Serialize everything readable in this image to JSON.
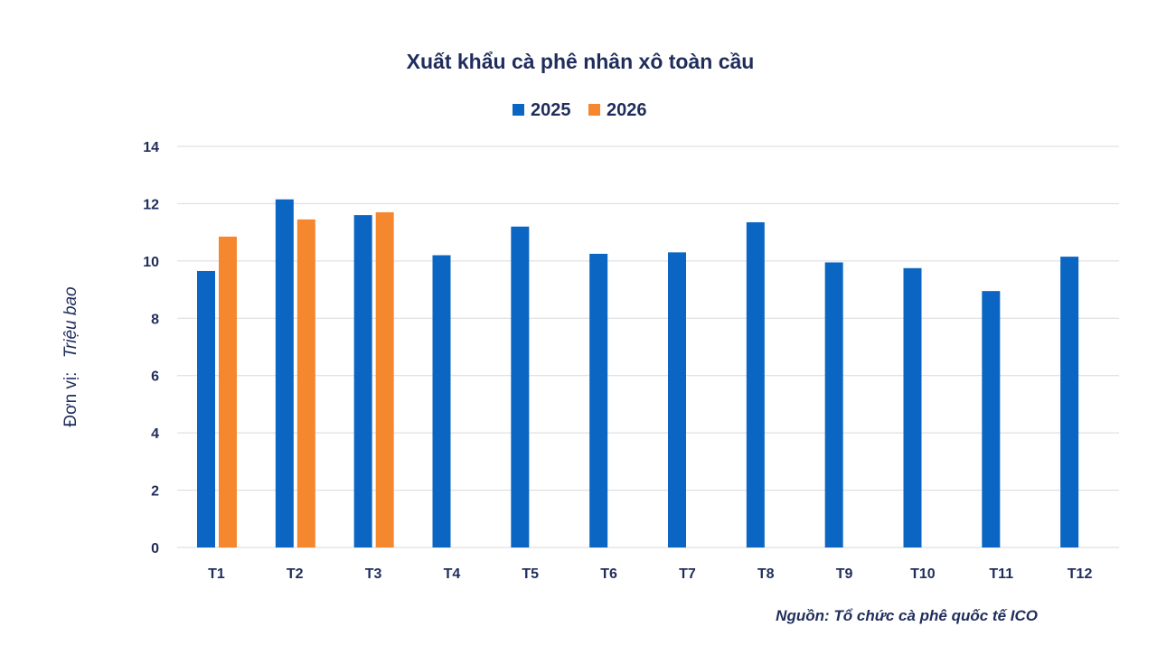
{
  "chart_data": {
    "type": "bar",
    "title": "Xuất khẩu cà phê nhân xô toàn cầu",
    "ylabel_prefix": "Đơn vị:",
    "ylabel_unit": "Triệu bao",
    "xlabel": "",
    "source": "Nguồn: Tổ chức cà phê quốc tế ICO",
    "categories": [
      "T1",
      "T2",
      "T3",
      "T4",
      "T5",
      "T6",
      "T7",
      "T8",
      "T9",
      "T10",
      "T11",
      "T12"
    ],
    "ylim": [
      0,
      14
    ],
    "yticks": [
      "0",
      "2",
      "4",
      "6",
      "8",
      "10",
      "12",
      "14"
    ],
    "grid": true,
    "legend_position": "top-center",
    "series": [
      {
        "name": "2025",
        "color": "#0a66c2",
        "values": [
          9.65,
          12.15,
          11.6,
          10.2,
          11.2,
          10.25,
          10.3,
          11.35,
          9.95,
          9.75,
          8.95,
          10.15
        ]
      },
      {
        "name": "2026",
        "color": "#f5872f",
        "values": [
          10.85,
          11.45,
          11.7,
          null,
          null,
          null,
          null,
          null,
          null,
          null,
          null,
          null
        ]
      }
    ]
  }
}
